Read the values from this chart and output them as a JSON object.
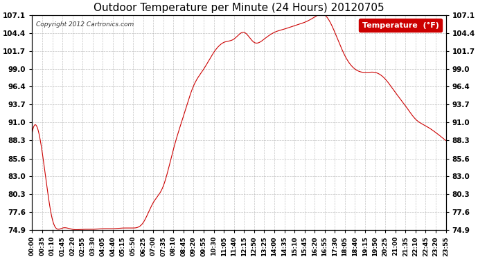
{
  "title": "Outdoor Temperature per Minute (24 Hours) 20120705",
  "copyright_text": "Copyright 2012 Cartronics.com",
  "legend_label": "Temperature  (°F)",
  "line_color": "#cc0000",
  "background_color": "#ffffff",
  "grid_color": "#aaaaaa",
  "yticks": [
    74.9,
    77.6,
    80.3,
    83.0,
    85.6,
    88.3,
    91.0,
    93.7,
    96.4,
    99.0,
    101.7,
    104.4,
    107.1
  ],
  "ylim": [
    74.9,
    107.1
  ],
  "xtick_labels": [
    "00:00",
    "00:35",
    "01:10",
    "01:45",
    "02:20",
    "02:55",
    "03:30",
    "04:05",
    "04:40",
    "05:15",
    "05:50",
    "06:25",
    "07:00",
    "07:35",
    "08:10",
    "08:45",
    "09:20",
    "09:55",
    "10:30",
    "11:05",
    "11:40",
    "12:15",
    "12:50",
    "13:25",
    "14:00",
    "14:35",
    "15:10",
    "15:45",
    "16:20",
    "16:55",
    "17:30",
    "18:05",
    "18:40",
    "19:15",
    "19:50",
    "20:25",
    "21:00",
    "21:35",
    "22:10",
    "22:45",
    "23:20",
    "23:55"
  ],
  "curve_keypoints_x": [
    0,
    35,
    70,
    105,
    140,
    175,
    210,
    245,
    280,
    315,
    350,
    385,
    420,
    455,
    490,
    525,
    560,
    595,
    630,
    665,
    700,
    735,
    770,
    805,
    840,
    875,
    910,
    945,
    980,
    1015,
    1050,
    1085,
    1120,
    1155,
    1190,
    1225,
    1260,
    1295,
    1330,
    1365,
    1400,
    1435
  ],
  "curve_keypoints_y": [
    89.5,
    86.5,
    76.5,
    75.2,
    75.0,
    75.0,
    75.0,
    75.1,
    75.1,
    75.2,
    75.2,
    76.0,
    79.0,
    81.5,
    87.0,
    92.0,
    96.5,
    99.0,
    101.5,
    103.0,
    103.5,
    104.5,
    103.0,
    103.5,
    104.5,
    105.0,
    105.5,
    106.0,
    106.8,
    107.1,
    104.5,
    101.0,
    99.0,
    98.5,
    98.5,
    97.5,
    95.5,
    93.5,
    91.5,
    90.5,
    89.5,
    88.3
  ]
}
